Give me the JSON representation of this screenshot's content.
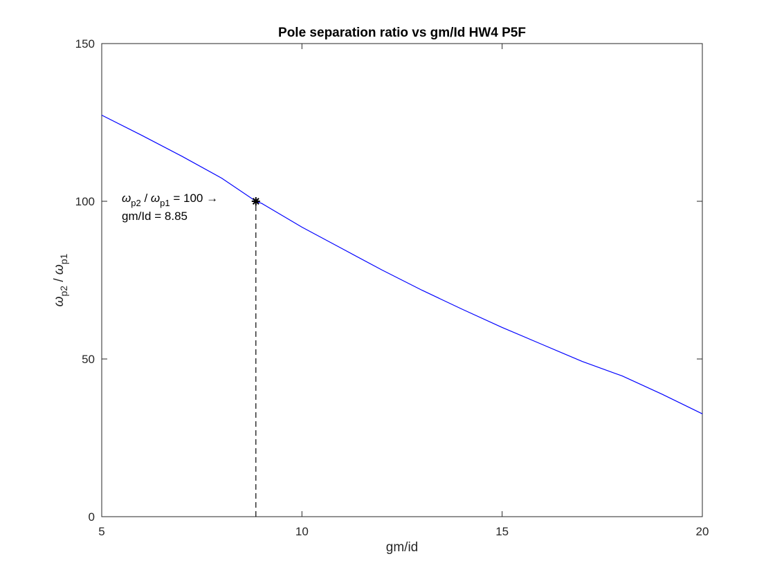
{
  "chart_data": {
    "type": "line",
    "title": "Pole separation ratio vs gm/Id HW4 P5F",
    "xlabel": "gm/id",
    "ylabel": {
      "symbol": "ω",
      "sub1": "p2",
      "sep": " / ",
      "sub2": "p1"
    },
    "xlim": [
      5,
      20
    ],
    "ylim": [
      0,
      150
    ],
    "xticks": [
      5,
      10,
      15,
      20
    ],
    "yticks": [
      0,
      50,
      100,
      150
    ],
    "grid": false,
    "series": [
      {
        "color": "#0000ff",
        "x": [
          5,
          6,
          7,
          8,
          8.85,
          9,
          10,
          11,
          12,
          13,
          14,
          15,
          16,
          17,
          18,
          19,
          20
        ],
        "y": [
          127.3,
          120.9,
          114.3,
          107.3,
          100.0,
          99.3,
          91.8,
          85.0,
          78.2,
          71.8,
          65.8,
          60.0,
          54.6,
          49.2,
          44.6,
          38.8,
          32.6
        ]
      }
    ],
    "marker": {
      "x": 8.85,
      "y": 100,
      "symbol": "asterisk",
      "color": "#000000"
    },
    "dropline": {
      "x": 8.85,
      "from_y": 0,
      "to_y": 100,
      "style": "dashed"
    },
    "annotation": {
      "line1": {
        "symbol": "ω",
        "sub1": "p2",
        "sep": " / ",
        "sub2": "p1",
        "suffix": " = 100 →"
      },
      "line2": "gm/Id = 8.85"
    }
  }
}
